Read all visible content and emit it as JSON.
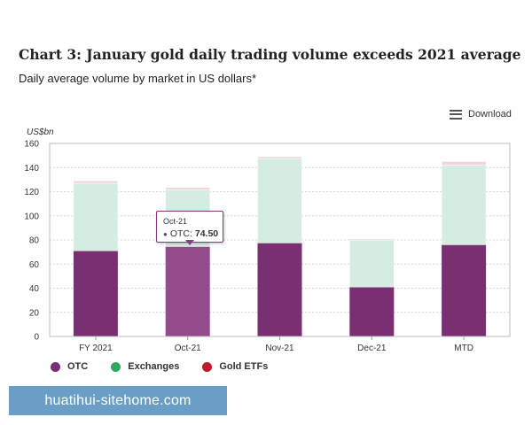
{
  "header": {
    "title": "Chart 3: January gold daily trading volume exceeds 2021 average",
    "subtitle": "Daily average volume by market in US dollars*"
  },
  "toolbar": {
    "download_label": "Download"
  },
  "tooltip": {
    "category": "Oct-21",
    "series": "OTC:",
    "value": "74.50"
  },
  "watermark": {
    "text": "huatihui-sitehome.com"
  },
  "colors": {
    "otc": "#7b2f73",
    "otc_highlight": "#934b8b",
    "exchanges": "#d4ede0",
    "gold_etfs": "#f0d6d9",
    "legend_otc": "#7b2f73",
    "legend_exchanges": "#2eaa5e",
    "legend_gold_etfs": "#c0182d"
  },
  "chart_data": {
    "type": "bar",
    "stacked": true,
    "y_unit_label": "US$bn",
    "categories": [
      "FY 2021",
      "Oct-21",
      "Nov-21",
      "Dec-21",
      "MTD"
    ],
    "series": [
      {
        "name": "OTC",
        "values": [
          71,
          74.5,
          77.5,
          41,
          76
        ]
      },
      {
        "name": "Exchanges",
        "values": [
          56,
          47,
          70,
          39,
          66
        ]
      },
      {
        "name": "Gold ETFs",
        "values": [
          2,
          2,
          1.5,
          1,
          3
        ]
      }
    ],
    "ylim": [
      0,
      160
    ],
    "yticks": [
      0,
      20,
      40,
      60,
      80,
      100,
      120,
      140,
      160
    ],
    "grid": true,
    "legend": "bottom-left",
    "highlighted": {
      "category_index": 1,
      "series_index": 0
    }
  }
}
